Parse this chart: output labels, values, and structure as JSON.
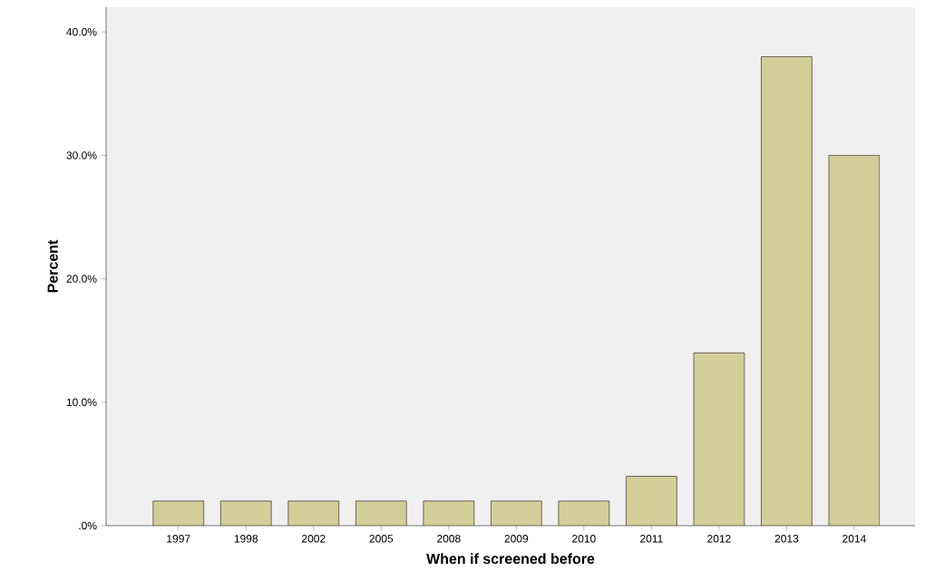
{
  "chart_data": {
    "type": "bar",
    "xlabel": "When if screened before",
    "ylabel": "Percent",
    "categories": [
      "1997",
      "1998",
      "2002",
      "2005",
      "2008",
      "2009",
      "2010",
      "2011",
      "2012",
      "2013",
      "2014"
    ],
    "values": [
      2,
      2,
      2,
      2,
      2,
      2,
      2,
      4,
      14,
      38,
      30
    ],
    "color": "#d3ce97",
    "ylim": [
      0,
      42
    ],
    "yticks": [
      {
        "value": 0,
        "label": ".0%"
      },
      {
        "value": 10,
        "label": "10.0%"
      },
      {
        "value": 20,
        "label": "20.0%"
      },
      {
        "value": 30,
        "label": "30.0%"
      },
      {
        "value": 40,
        "label": "40.0%"
      }
    ]
  }
}
